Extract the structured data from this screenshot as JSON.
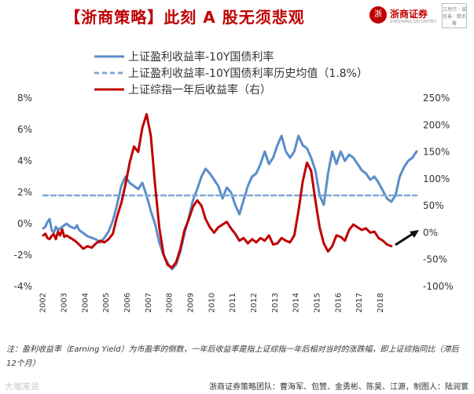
{
  "header": {
    "title": "【浙商策略】此刻 A 股无须悲观",
    "logo_name": "浙商证券",
    "logo_sub": "ZHESHANG SECURITIES",
    "seal_text": "三思行 · 诚信善 · 精术聚"
  },
  "footer": {
    "note": "注：盈利收益率（Earning Yield）为市盈率的倒数，一年后收益率是指上证综指一年后相对当时的涨跌幅，即上证综指同比（滞后12个月）",
    "team": "浙商证券策略团队：曹海军、包赞、金勇彬、陈昊、江源，制图人：陆润寰",
    "watermark": "大咖来说"
  },
  "chart_data": {
    "type": "line",
    "title": "",
    "xlabel": "",
    "ylabel": "",
    "legend_position": "top-left",
    "grid": false,
    "x_ticks": [
      "2002",
      "2003",
      "2004",
      "2005",
      "2006",
      "2007",
      "2008",
      "2009",
      "2010",
      "2011",
      "2012",
      "2013",
      "2014",
      "2015",
      "2016",
      "2017",
      "2018"
    ],
    "y_left": {
      "ticks": [
        "8%",
        "6%",
        "4%",
        "2%",
        "0%",
        "-2%",
        "-4%"
      ],
      "lim": [
        -4,
        8
      ]
    },
    "y_right": {
      "ticks": [
        "250%",
        "200%",
        "150%",
        "100%",
        "50%",
        "0%",
        "-50%",
        "-100%"
      ],
      "lim": [
        -100,
        250
      ]
    },
    "series": [
      {
        "name": "上证盈利收益率-10Y国债利率",
        "axis": "left",
        "style": "solid",
        "color": "#5b8ec9",
        "x": [
          2001.9,
          2002.0,
          2002.1,
          2002.2,
          2002.3,
          2002.4,
          2002.5,
          2002.6,
          2002.7,
          2002.8,
          2002.9,
          2003.0,
          2003.2,
          2003.4,
          2003.5,
          2003.6,
          2003.8,
          2004.0,
          2004.2,
          2004.4,
          2004.6,
          2004.8,
          2005.0,
          2005.2,
          2005.4,
          2005.6,
          2005.8,
          2006.0,
          2006.2,
          2006.4,
          2006.6,
          2006.8,
          2007.0,
          2007.2,
          2007.4,
          2007.6,
          2007.8,
          2008.0,
          2008.2,
          2008.4,
          2008.6,
          2008.8,
          2009.0,
          2009.2,
          2009.4,
          2009.6,
          2009.8,
          2010.0,
          2010.2,
          2010.4,
          2010.6,
          2010.8,
          2011.0,
          2011.2,
          2011.4,
          2011.6,
          2011.8,
          2012.0,
          2012.2,
          2012.4,
          2012.6,
          2012.8,
          2013.0,
          2013.2,
          2013.4,
          2013.6,
          2013.8,
          2014.0,
          2014.2,
          2014.4,
          2014.6,
          2014.8,
          2015.0,
          2015.2,
          2015.4,
          2015.6,
          2015.8,
          2016.0,
          2016.2,
          2016.4,
          2016.6,
          2016.8,
          2017.0,
          2017.2,
          2017.4,
          2017.6,
          2017.8,
          2018.0,
          2018.2,
          2018.4,
          2018.6,
          2018.8,
          2019.0,
          2019.2,
          2019.4,
          2019.6
        ],
        "y": [
          -0.3,
          -0.2,
          0.1,
          0.3,
          -0.4,
          -0.6,
          -0.2,
          -0.4,
          -0.3,
          -0.2,
          -0.1,
          0.0,
          -0.2,
          -0.3,
          -0.1,
          -0.4,
          -0.6,
          -0.8,
          -0.9,
          -1.0,
          -1.2,
          -0.9,
          -0.5,
          0.2,
          1.2,
          2.4,
          3.0,
          2.6,
          2.4,
          2.2,
          2.6,
          1.8,
          0.8,
          0.0,
          -1.2,
          -2.0,
          -2.5,
          -2.9,
          -2.6,
          -1.8,
          -0.6,
          0.4,
          1.5,
          2.2,
          3.0,
          3.5,
          3.2,
          2.8,
          2.4,
          1.6,
          2.3,
          2.0,
          1.2,
          0.6,
          1.5,
          2.4,
          3.0,
          3.2,
          3.8,
          4.6,
          3.8,
          4.2,
          5.0,
          5.6,
          4.6,
          4.2,
          4.6,
          5.6,
          5.0,
          4.8,
          4.2,
          3.4,
          1.8,
          1.2,
          3.2,
          4.6,
          3.8,
          4.6,
          4.0,
          4.4,
          4.2,
          3.8,
          3.4,
          3.2,
          2.8,
          3.0,
          2.6,
          2.1,
          1.6,
          1.4,
          1.8,
          3.0,
          3.6,
          4.0,
          4.2,
          4.6
        ]
      },
      {
        "name": "上证盈利收益率-10Y国债利率历史均值（1.8%）",
        "axis": "left",
        "style": "dashed",
        "color": "#7fa7d6",
        "x": [
          2001.9,
          2019.6
        ],
        "y": [
          1.8,
          1.8
        ]
      },
      {
        "name": "上证综指一年后收益率（右）",
        "axis": "right",
        "style": "solid",
        "color": "#c00000",
        "x": [
          2001.9,
          2002.0,
          2002.1,
          2002.2,
          2002.3,
          2002.4,
          2002.5,
          2002.6,
          2002.7,
          2002.8,
          2002.9,
          2003.0,
          2003.2,
          2003.4,
          2003.6,
          2003.8,
          2004.0,
          2004.2,
          2004.4,
          2004.6,
          2004.8,
          2005.0,
          2005.2,
          2005.4,
          2005.6,
          2005.8,
          2006.0,
          2006.2,
          2006.4,
          2006.6,
          2006.8,
          2007.0,
          2007.2,
          2007.4,
          2007.6,
          2007.8,
          2008.0,
          2008.2,
          2008.4,
          2008.6,
          2008.8,
          2009.0,
          2009.2,
          2009.4,
          2009.6,
          2009.8,
          2010.0,
          2010.2,
          2010.4,
          2010.6,
          2010.8,
          2011.0,
          2011.2,
          2011.4,
          2011.6,
          2011.8,
          2012.0,
          2012.2,
          2012.4,
          2012.6,
          2012.8,
          2013.0,
          2013.2,
          2013.4,
          2013.6,
          2013.8,
          2014.0,
          2014.2,
          2014.4,
          2014.6,
          2014.8,
          2015.0,
          2015.2,
          2015.4,
          2015.6,
          2015.8,
          2016.0,
          2016.2,
          2016.4,
          2016.6,
          2016.8,
          2017.0,
          2017.2,
          2017.4,
          2017.6,
          2017.8,
          2018.0,
          2018.2,
          2018.4
        ],
        "y": [
          -5,
          -2,
          -10,
          -12,
          -6,
          -3,
          -12,
          2,
          -5,
          6,
          -8,
          -5,
          -10,
          -15,
          -22,
          -30,
          -25,
          -28,
          -20,
          -15,
          -18,
          -12,
          -2,
          30,
          55,
          90,
          130,
          160,
          150,
          195,
          220,
          180,
          90,
          10,
          -40,
          -60,
          -65,
          -55,
          -30,
          5,
          25,
          48,
          60,
          50,
          25,
          10,
          0,
          10,
          15,
          20,
          8,
          -2,
          -15,
          -10,
          -20,
          -12,
          -18,
          -10,
          -15,
          -5,
          -22,
          -20,
          -10,
          -15,
          -18,
          -5,
          40,
          95,
          130,
          115,
          60,
          10,
          -20,
          -35,
          -25,
          -5,
          -8,
          -15,
          5,
          15,
          10,
          5,
          8,
          0,
          2,
          -10,
          -15,
          -22,
          -25
        ]
      }
    ]
  }
}
